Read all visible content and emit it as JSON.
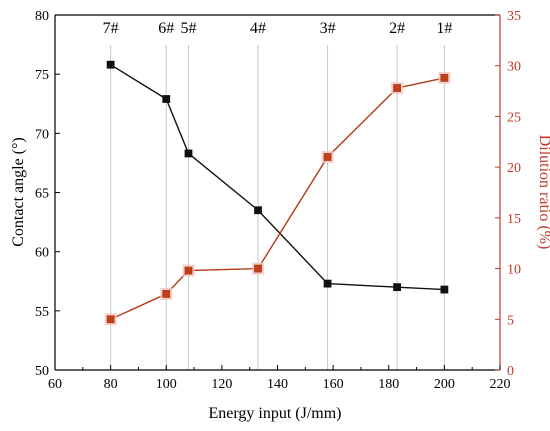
{
  "chart_data": {
    "type": "line",
    "xlabel": "Energy input (J/mm)",
    "ylabel": "Contact angle (°)",
    "y2label": "Dilution ratio (%)",
    "xlim": [
      60,
      220
    ],
    "ylim": [
      50,
      80
    ],
    "y2lim": [
      0,
      35
    ],
    "x_ticks": [
      60,
      80,
      100,
      120,
      140,
      160,
      180,
      200,
      220
    ],
    "y_ticks": [
      50,
      55,
      60,
      65,
      70,
      75,
      80
    ],
    "y2_ticks": [
      0,
      5,
      10,
      15,
      20,
      25,
      30,
      35
    ],
    "grid": "vertical lines at samples",
    "samples": [
      {
        "label": "7#",
        "x": 80
      },
      {
        "label": "6#",
        "x": 100
      },
      {
        "label": "5#",
        "x": 108
      },
      {
        "label": "4#",
        "x": 133
      },
      {
        "label": "3#",
        "x": 158
      },
      {
        "label": "2#",
        "x": 183
      },
      {
        "label": "1#",
        "x": 200
      }
    ],
    "series": [
      {
        "axis": "left",
        "color": "#111111",
        "marker_fill": "#111111",
        "x": [
          80,
          100,
          108,
          133,
          158,
          183,
          200
        ],
        "values": [
          75.8,
          72.9,
          68.3,
          63.5,
          57.3,
          57.0,
          56.8
        ]
      },
      {
        "axis": "right",
        "color": "#b33a1a",
        "marker_fill": "#c0401e",
        "x": [
          80,
          100,
          108,
          133,
          158,
          183,
          200
        ],
        "values": [
          5.0,
          7.5,
          9.8,
          10.0,
          21.0,
          27.8,
          28.8
        ]
      }
    ],
    "colors": {
      "axis_left": "#000000",
      "axis_right": "#c0392b",
      "grid": "#c8c8c8"
    }
  }
}
